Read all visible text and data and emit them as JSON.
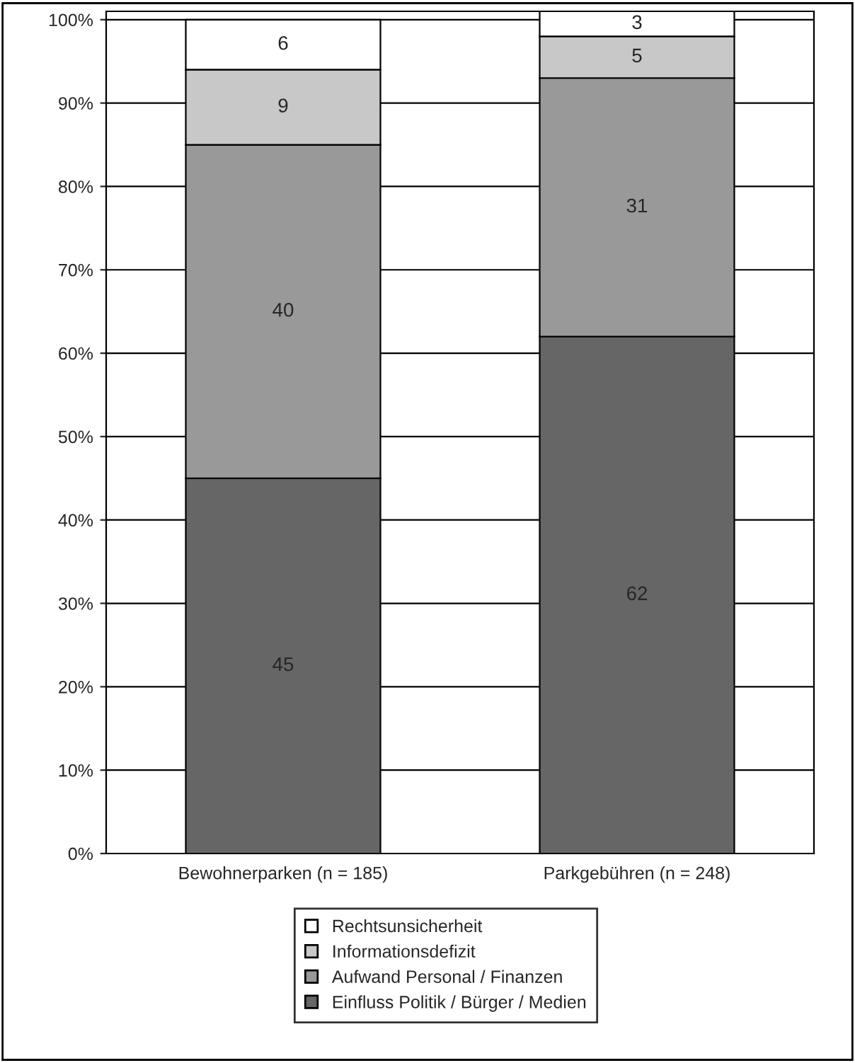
{
  "chart_data": {
    "type": "bar",
    "stacked": true,
    "categories": [
      "Bewohnerparken (n = 185)",
      "Parkgebühren (n = 248)"
    ],
    "series": [
      {
        "name": "Einfluss Politik / Bürger / Medien",
        "color": "#666666",
        "values": [
          45,
          62
        ]
      },
      {
        "name": "Aufwand Personal / Finanzen",
        "color": "#999999",
        "values": [
          40,
          31
        ]
      },
      {
        "name": "Informationsdefizit",
        "color": "#c8c8c8",
        "values": [
          9,
          5
        ]
      },
      {
        "name": "Rechtsunsicherheit",
        "color": "#ffffff",
        "values": [
          6,
          3
        ]
      }
    ],
    "ylim": [
      0,
      101
    ],
    "yticks": [
      {
        "value": 0,
        "label": "0%"
      },
      {
        "value": 10,
        "label": "10%"
      },
      {
        "value": 20,
        "label": "20%"
      },
      {
        "value": 30,
        "label": "30%"
      },
      {
        "value": 40,
        "label": "40%"
      },
      {
        "value": 50,
        "label": "50%"
      },
      {
        "value": 60,
        "label": "60%"
      },
      {
        "value": 70,
        "label": "70%"
      },
      {
        "value": 80,
        "label": "80%"
      },
      {
        "value": 90,
        "label": "90%"
      },
      {
        "value": 100,
        "label": "100%"
      }
    ],
    "grid": "y",
    "data_labels": true,
    "legend": "bottom"
  }
}
